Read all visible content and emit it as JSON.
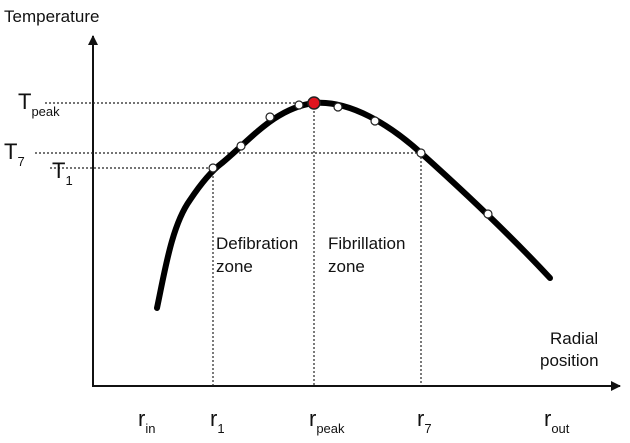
{
  "y_axis": {
    "label": "Temperature",
    "ticks": [
      {
        "base": "T",
        "sub": "peak"
      },
      {
        "base": "T",
        "sub": "7"
      },
      {
        "base": "T",
        "sub": "1"
      }
    ]
  },
  "x_axis": {
    "label": [
      "Radial",
      "position"
    ],
    "ticks": [
      {
        "base": "r",
        "sub": "in"
      },
      {
        "base": "r",
        "sub": "1"
      },
      {
        "base": "r",
        "sub": "peak"
      },
      {
        "base": "r",
        "sub": "7"
      },
      {
        "base": "r",
        "sub": "out"
      }
    ]
  },
  "zones": [
    {
      "label": [
        "Defibration",
        "zone"
      ]
    },
    {
      "label": [
        "Fibrillation",
        "zone"
      ]
    }
  ]
}
